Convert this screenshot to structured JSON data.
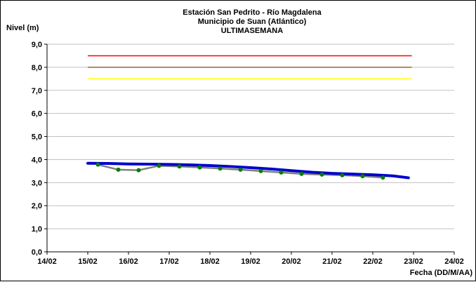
{
  "chart_data": {
    "type": "line",
    "title_lines": [
      "Estación San Pedrito - Río Magdalena",
      "Municipio de Suan (Atlántico)",
      "ULTIMASEMANA"
    ],
    "ylabel": "Nivel (m)",
    "xlabel": "Fecha (DD/M/AA)",
    "ylim": [
      0,
      9
    ],
    "xlim": [
      "2024-02-14",
      "2024-02-24"
    ],
    "yticks": [
      "0,0",
      "1,0",
      "2,0",
      "3,0",
      "4,0",
      "5,0",
      "6,0",
      "7,0",
      "8,0",
      "9,0"
    ],
    "xticks": [
      "14/02",
      "15/02",
      "16/02",
      "17/02",
      "18/02",
      "19/02",
      "20/02",
      "21/02",
      "22/02",
      "23/02",
      "24/02"
    ],
    "grid": "horizontal",
    "thresholds": [
      {
        "value": 8.5,
        "color": "#ff0000"
      },
      {
        "value": 8.0,
        "color": "#996633"
      },
      {
        "value": 7.5,
        "color": "#ffff00"
      }
    ],
    "series": [
      {
        "style": "thick-line",
        "color": "#0000cc",
        "x": [
          "2024-02-15 00:00",
          "2024-02-15 12:00",
          "2024-02-16 00:00",
          "2024-02-16 12:00",
          "2024-02-17 00:00",
          "2024-02-17 12:00",
          "2024-02-18 00:00",
          "2024-02-18 12:00",
          "2024-02-19 00:00",
          "2024-02-19 12:00",
          "2024-02-20 00:00",
          "2024-02-20 12:00",
          "2024-02-21 00:00",
          "2024-02-21 12:00",
          "2024-02-22 00:00",
          "2024-02-22 12:00",
          "2024-02-22 21:00"
        ],
        "y": [
          3.84,
          3.83,
          3.81,
          3.8,
          3.79,
          3.77,
          3.74,
          3.7,
          3.65,
          3.59,
          3.52,
          3.45,
          3.4,
          3.37,
          3.34,
          3.29,
          3.21
        ]
      },
      {
        "style": "line-markers",
        "color": "#808080",
        "marker_color": "#008000",
        "x": [
          "2024-02-15 06:00",
          "2024-02-15 18:00",
          "2024-02-16 06:00",
          "2024-02-16 18:00",
          "2024-02-17 06:00",
          "2024-02-17 18:00",
          "2024-02-18 06:00",
          "2024-02-18 18:00",
          "2024-02-19 06:00",
          "2024-02-19 18:00",
          "2024-02-20 06:00",
          "2024-02-20 18:00",
          "2024-02-21 06:00",
          "2024-02-21 18:00",
          "2024-02-22 06:00"
        ],
        "y": [
          3.78,
          3.56,
          3.54,
          3.73,
          3.7,
          3.66,
          3.61,
          3.56,
          3.5,
          3.44,
          3.38,
          3.35,
          3.32,
          3.28,
          3.22
        ]
      }
    ]
  }
}
